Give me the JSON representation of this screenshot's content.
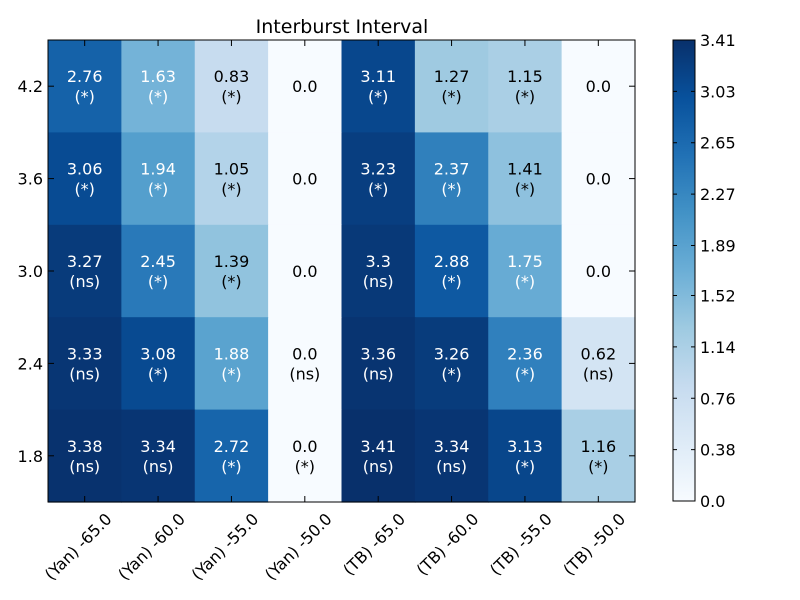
{
  "chart_data": {
    "type": "heatmap",
    "title": "Interburst Interval",
    "xlabel": "",
    "ylabel": "",
    "x_categories": [
      "(Yan) -65.0",
      "(Yan) -60.0",
      "(Yan) -55.0",
      "(Yan) -50.0",
      "(TB) -65.0",
      "(TB) -60.0",
      "(TB) -55.0",
      "(TB) -50.0"
    ],
    "y_categories": [
      "4.2",
      "3.6",
      "3.0",
      "2.4",
      "1.8"
    ],
    "values": [
      [
        2.76,
        1.63,
        0.83,
        0.0,
        3.11,
        1.27,
        1.15,
        0.0
      ],
      [
        3.06,
        1.94,
        1.05,
        0.0,
        3.23,
        2.37,
        1.41,
        0.0
      ],
      [
        3.27,
        2.45,
        1.39,
        0.0,
        3.3,
        2.88,
        1.75,
        0.0
      ],
      [
        3.33,
        3.08,
        1.88,
        0.0,
        3.36,
        3.26,
        2.36,
        0.62
      ],
      [
        3.38,
        3.34,
        2.72,
        0.0,
        3.41,
        3.34,
        3.13,
        1.16
      ]
    ],
    "value_labels": [
      [
        "2.76",
        "1.63",
        "0.83",
        "0.0",
        "3.11",
        "1.27",
        "1.15",
        "0.0"
      ],
      [
        "3.06",
        "1.94",
        "1.05",
        "0.0",
        "3.23",
        "2.37",
        "1.41",
        "0.0"
      ],
      [
        "3.27",
        "2.45",
        "1.39",
        "0.0",
        "3.3",
        "2.88",
        "1.75",
        "0.0"
      ],
      [
        "3.33",
        "3.08",
        "1.88",
        "0.0",
        "3.36",
        "3.26",
        "2.36",
        "0.62"
      ],
      [
        "3.38",
        "3.34",
        "2.72",
        "0.0",
        "3.41",
        "3.34",
        "3.13",
        "1.16"
      ]
    ],
    "significance": [
      [
        "(*)",
        "(*)",
        "(*)",
        "",
        "(*)",
        "(*)",
        "(*)",
        ""
      ],
      [
        "(*)",
        "(*)",
        "(*)",
        "",
        "(*)",
        "(*)",
        "(*)",
        ""
      ],
      [
        "(ns)",
        "(*)",
        "(*)",
        "",
        "(ns)",
        "(*)",
        "(*)",
        ""
      ],
      [
        "(ns)",
        "(*)",
        "(*)",
        "(ns)",
        "(ns)",
        "(*)",
        "(*)",
        "(ns)"
      ],
      [
        "(ns)",
        "(ns)",
        "(*)",
        "(*)",
        "(ns)",
        "(ns)",
        "(*)",
        "(*)"
      ]
    ],
    "vmin": 0.0,
    "vmax": 3.41,
    "colormap": "Blues",
    "colorbar_ticks": [
      "0.0",
      "0.38",
      "0.76",
      "1.14",
      "1.52",
      "1.89",
      "2.27",
      "2.65",
      "3.03",
      "3.41"
    ],
    "colorbar_tick_values": [
      0.0,
      0.38,
      0.76,
      1.14,
      1.52,
      1.89,
      2.27,
      2.65,
      3.03,
      3.41
    ],
    "light_text_color": "#ffffff",
    "dark_text_color": "#000000",
    "grid": false
  }
}
